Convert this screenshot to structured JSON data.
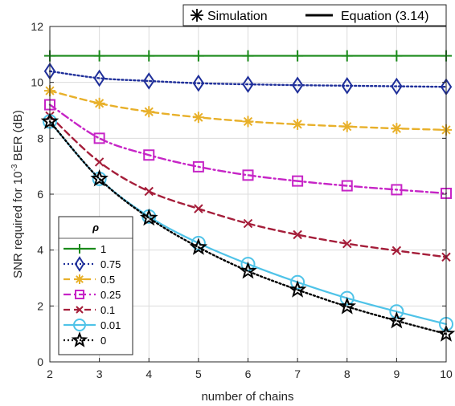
{
  "chart_data": {
    "type": "line",
    "xlabel": "number of chains",
    "ylabel": "SNR required for 10",
    "ylabel_sup": "-3",
    "ylabel_tail": " BER (dB)",
    "xlim": [
      2,
      10
    ],
    "ylim": [
      0,
      12
    ],
    "x_ticks": [
      2,
      3,
      4,
      5,
      6,
      7,
      8,
      9,
      10
    ],
    "y_ticks": [
      0,
      2,
      4,
      6,
      8,
      10,
      12
    ],
    "grid": true,
    "legend_title": "ρ",
    "legend_position": "lower-left",
    "top_legend": {
      "simulation_label": "Simulation",
      "equation_label": "Equation (3.14)"
    },
    "x": [
      2,
      3,
      4,
      5,
      6,
      7,
      8,
      9,
      10
    ],
    "series": [
      {
        "name": "1",
        "color": "#1a8a1a",
        "line": "solid",
        "marker": "plus",
        "values": [
          10.95,
          10.95,
          10.95,
          10.95,
          10.95,
          10.95,
          10.95,
          10.95,
          10.95
        ]
      },
      {
        "name": "0.75",
        "color": "#1f2f9a",
        "line": "dotted",
        "marker": "diamond",
        "values": [
          10.4,
          10.15,
          10.05,
          9.97,
          9.93,
          9.9,
          9.88,
          9.86,
          9.84
        ]
      },
      {
        "name": "0.5",
        "color": "#e8b02a",
        "line": "dashed",
        "marker": "asterisk",
        "values": [
          9.7,
          9.25,
          8.95,
          8.75,
          8.6,
          8.5,
          8.42,
          8.35,
          8.3
        ]
      },
      {
        "name": "0.25",
        "color": "#c624c6",
        "line": "dashdot",
        "marker": "square",
        "values": [
          9.2,
          8.0,
          7.4,
          6.98,
          6.68,
          6.47,
          6.3,
          6.16,
          6.03
        ]
      },
      {
        "name": "0.1",
        "color": "#a51e3a",
        "line": "dashed",
        "marker": "x",
        "values": [
          8.8,
          7.15,
          6.1,
          5.48,
          4.95,
          4.55,
          4.23,
          3.98,
          3.75
        ]
      },
      {
        "name": "0.01",
        "color": "#4fc3e8",
        "line": "solid",
        "marker": "circle",
        "values": [
          8.6,
          6.55,
          5.2,
          4.25,
          3.5,
          2.85,
          2.28,
          1.8,
          1.35
        ]
      },
      {
        "name": "0",
        "color": "#000000",
        "line": "dotted",
        "marker": "star",
        "values": [
          8.6,
          6.55,
          5.15,
          4.1,
          3.25,
          2.58,
          1.98,
          1.47,
          1.0
        ]
      }
    ]
  }
}
